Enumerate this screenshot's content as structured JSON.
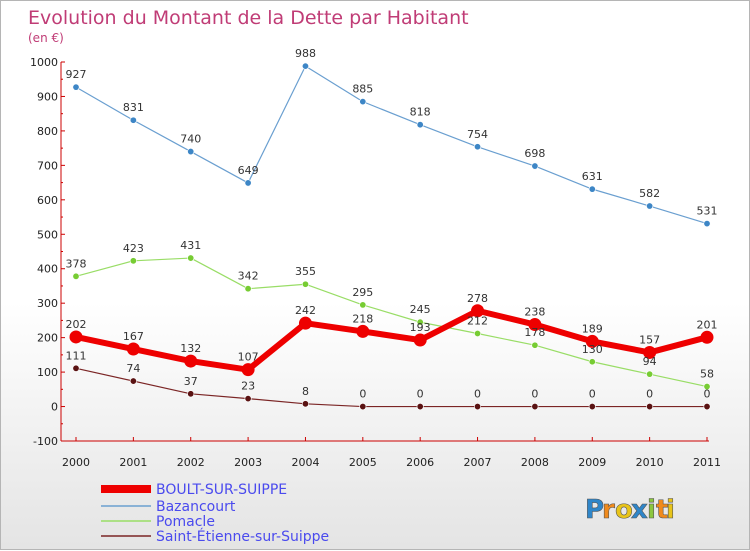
{
  "chart_data": {
    "type": "line",
    "title": "Evolution du Montant de la Dette par Habitant",
    "subtitle": "(en €)",
    "xlabel": "",
    "ylabel": "",
    "x": [
      "2000",
      "2001",
      "2002",
      "2003",
      "2004",
      "2005",
      "2006",
      "2007",
      "2008",
      "2009",
      "2010",
      "2011"
    ],
    "ylim": [
      -100,
      1000
    ],
    "yticks": [
      -100,
      0,
      100,
      200,
      300,
      400,
      500,
      600,
      700,
      800,
      900,
      1000
    ],
    "grid": false,
    "legend_position": "bottom-left",
    "series": [
      {
        "name": "BOULT-SUR-SUIPPE",
        "color": "#ee0000",
        "values": [
          202,
          167,
          132,
          107,
          242,
          218,
          193,
          278,
          238,
          189,
          157,
          201
        ]
      },
      {
        "name": "Bazancourt",
        "color": "#6a9fd0",
        "values": [
          927,
          831,
          740,
          649,
          988,
          885,
          818,
          754,
          698,
          631,
          582,
          531
        ]
      },
      {
        "name": "Pomacle",
        "color": "#99dd66",
        "values": [
          378,
          423,
          431,
          342,
          355,
          295,
          245,
          212,
          178,
          130,
          94,
          58
        ]
      },
      {
        "name": "Saint-Étienne-sur-Suippe",
        "color": "#7b2525",
        "values": [
          111,
          74,
          37,
          23,
          8,
          0,
          0,
          0,
          0,
          0,
          0,
          0
        ]
      }
    ]
  },
  "logo": {
    "letters": [
      "P",
      "r",
      "o",
      "x",
      "i",
      "t",
      "i"
    ],
    "colors": [
      "#2f86c9",
      "#f08a1c",
      "#e8c41a",
      "#2f86c9",
      "#8cc63f",
      "#f08a1c",
      "#e8c41a"
    ]
  }
}
